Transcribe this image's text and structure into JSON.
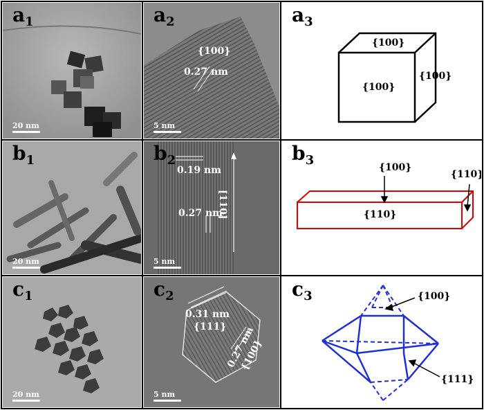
{
  "row_a": {
    "a1": {
      "letter": "a",
      "sub": "1",
      "scale": "20 nm"
    },
    "a2": {
      "letter": "a",
      "sub": "2",
      "facet": "{100}",
      "spacing": "0.27 nm",
      "scale": "5 nm"
    },
    "a3": {
      "letter": "a",
      "sub": "3",
      "top": "{100}",
      "front": "{100}",
      "side": "{100}"
    }
  },
  "row_b": {
    "b1": {
      "letter": "b",
      "sub": "1",
      "scale": "20 nm"
    },
    "b2": {
      "letter": "b",
      "sub": "2",
      "spacing1": "0.19 nm",
      "spacing2": "0.27 nm",
      "direction": "[110]",
      "scale": "5 nm"
    },
    "b3": {
      "letter": "b",
      "sub": "3",
      "top": "{100}",
      "end": "{110}",
      "front": "{110}"
    }
  },
  "row_c": {
    "c1": {
      "letter": "c",
      "sub": "1",
      "scale": "20 nm"
    },
    "c2": {
      "letter": "c",
      "sub": "2",
      "spacing1": "0.31 nm",
      "facet1": "{111}",
      "spacing2": "0.27 nm",
      "facet2": "{100}",
      "scale": "5 nm"
    },
    "c3": {
      "letter": "c",
      "sub": "3",
      "facet_top": "{100}",
      "facet_side": "{111}"
    }
  },
  "colors": {
    "cube": "#000000",
    "rod": "#e00000",
    "octa": "#1f2fd6"
  }
}
